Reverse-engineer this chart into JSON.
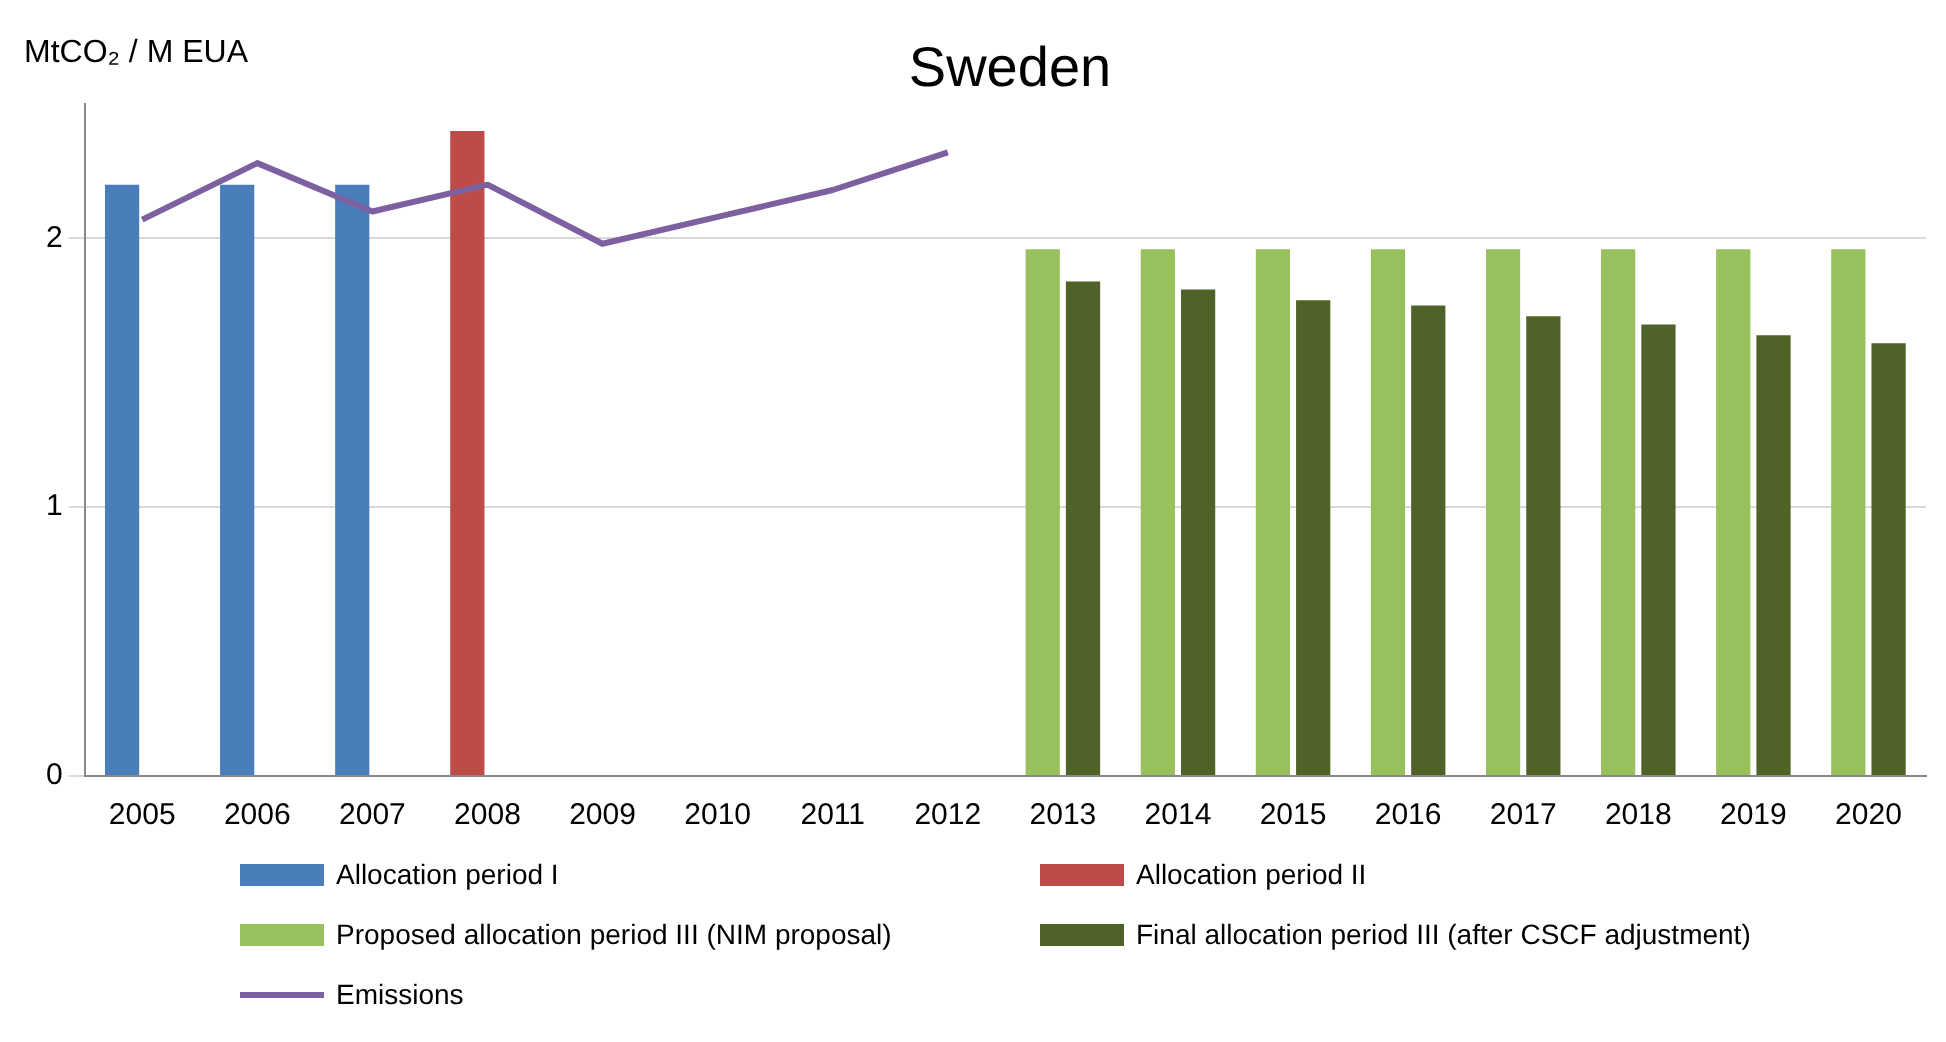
{
  "chart_data": {
    "type": "bar",
    "title": "Sweden",
    "ylabel": "MtCO₂ / M EUA",
    "categories": [
      "2005",
      "2006",
      "2007",
      "2008",
      "2009",
      "2010",
      "2011",
      "2012",
      "2013",
      "2014",
      "2015",
      "2016",
      "2017",
      "2018",
      "2019",
      "2020"
    ],
    "series": [
      {
        "name": "Allocation period I",
        "color": "#4a7ebb",
        "values": [
          2.2,
          2.2,
          2.2,
          null,
          null,
          null,
          null,
          null,
          null,
          null,
          null,
          null,
          null,
          null,
          null,
          null
        ]
      },
      {
        "name": "Allocation period II",
        "color": "#be4b48",
        "values": [
          null,
          null,
          null,
          2.4,
          null,
          null,
          null,
          null,
          null,
          null,
          null,
          null,
          null,
          null,
          null,
          null
        ]
      },
      {
        "name": "Proposed allocation period III (NIM proposal)",
        "color": "#98c05c",
        "values": [
          null,
          null,
          null,
          null,
          null,
          null,
          null,
          null,
          1.96,
          1.96,
          1.96,
          1.96,
          1.96,
          1.96,
          1.96,
          1.96
        ]
      },
      {
        "name": "Final allocation period III (after CSCF adjustment)",
        "color": "#4f6228",
        "values": [
          null,
          null,
          null,
          null,
          null,
          null,
          null,
          null,
          1.84,
          1.81,
          1.77,
          1.75,
          1.71,
          1.68,
          1.64,
          1.61
        ]
      },
      {
        "name": "Emissions",
        "type": "line",
        "color": "#7d60a0",
        "values": [
          2.07,
          2.28,
          2.1,
          2.2,
          1.98,
          2.08,
          2.18,
          2.32,
          null,
          null,
          null,
          null,
          null,
          null,
          null,
          null
        ]
      }
    ],
    "ylim": [
      0,
      2.5
    ],
    "yticks": [
      0,
      1,
      2
    ],
    "grid": "y",
    "legend": "bottom",
    "marker": "none"
  }
}
